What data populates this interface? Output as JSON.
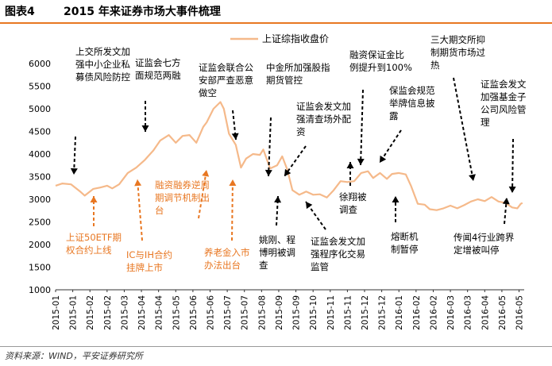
{
  "header": {
    "figure_label": "图表4",
    "title": "2015 年来证券市场大事件梳理"
  },
  "footer": {
    "source": "资料来源：WIND，平安证券研究所"
  },
  "chart_data": {
    "type": "line",
    "title": "2015 年来证券市场大事件梳理",
    "legend": {
      "label": "上证综指收盘价",
      "position": "top"
    },
    "colors": {
      "line": "#f5b98a",
      "black_annotation": "#000000",
      "orange_annotation": "#e87722"
    },
    "ylim": [
      1000,
      6000
    ],
    "yticks": [
      1000,
      1500,
      2000,
      2500,
      3000,
      3500,
      4000,
      4500,
      5000,
      5500,
      6000
    ],
    "xticks": [
      "2015-01",
      "2015-01",
      "2015-02",
      "2015-02",
      "2015-03",
      "2015-04",
      "2015-04",
      "2015-05",
      "2015-06",
      "2015-06",
      "2015-07",
      "2015-07",
      "2015-08",
      "2015-09",
      "2015-09",
      "2015-10",
      "2015-11",
      "2015-11",
      "2015-12",
      "2015-12",
      "2016-01",
      "2016-02",
      "2016-02",
      "2016-03",
      "2016-03",
      "2016-04",
      "2016-05",
      "2016-05"
    ],
    "x_index_range": [
      0,
      27.2
    ],
    "series": [
      {
        "name": "上证综指收盘价",
        "points": [
          [
            0.0,
            3300
          ],
          [
            0.4,
            3350
          ],
          [
            0.9,
            3330
          ],
          [
            1.4,
            3180
          ],
          [
            1.7,
            3080
          ],
          [
            2.2,
            3230
          ],
          [
            2.6,
            3260
          ],
          [
            3.0,
            3300
          ],
          [
            3.3,
            3240
          ],
          [
            3.7,
            3330
          ],
          [
            4.2,
            3580
          ],
          [
            4.7,
            3700
          ],
          [
            5.2,
            3870
          ],
          [
            5.7,
            4080
          ],
          [
            6.1,
            4300
          ],
          [
            6.6,
            4420
          ],
          [
            7.0,
            4250
          ],
          [
            7.4,
            4400
          ],
          [
            7.8,
            4420
          ],
          [
            8.2,
            4250
          ],
          [
            8.6,
            4600
          ],
          [
            8.8,
            4700
          ],
          [
            9.2,
            5000
          ],
          [
            9.6,
            5150
          ],
          [
            9.8,
            5000
          ],
          [
            10.1,
            4450
          ],
          [
            10.5,
            4200
          ],
          [
            10.8,
            3700
          ],
          [
            11.1,
            3900
          ],
          [
            11.5,
            4000
          ],
          [
            11.9,
            3980
          ],
          [
            12.1,
            4100
          ],
          [
            12.5,
            3680
          ],
          [
            12.9,
            3750
          ],
          [
            13.2,
            3950
          ],
          [
            13.5,
            3650
          ],
          [
            13.8,
            3200
          ],
          [
            14.2,
            3100
          ],
          [
            14.6,
            3170
          ],
          [
            15.0,
            3100
          ],
          [
            15.4,
            3110
          ],
          [
            15.8,
            3040
          ],
          [
            16.2,
            3200
          ],
          [
            16.6,
            3400
          ],
          [
            17.0,
            3380
          ],
          [
            17.4,
            3400
          ],
          [
            17.8,
            3580
          ],
          [
            18.2,
            3620
          ],
          [
            18.5,
            3470
          ],
          [
            18.9,
            3580
          ],
          [
            19.3,
            3450
          ],
          [
            19.6,
            3560
          ],
          [
            20.0,
            3580
          ],
          [
            20.4,
            3550
          ],
          [
            20.7,
            3300
          ],
          [
            21.1,
            2900
          ],
          [
            21.5,
            2880
          ],
          [
            21.8,
            2780
          ],
          [
            22.2,
            2760
          ],
          [
            22.6,
            2800
          ],
          [
            23.0,
            2860
          ],
          [
            23.4,
            2800
          ],
          [
            23.8,
            2870
          ],
          [
            24.2,
            2950
          ],
          [
            24.6,
            3000
          ],
          [
            25.0,
            2960
          ],
          [
            25.4,
            3050
          ],
          [
            25.8,
            2950
          ],
          [
            26.2,
            2920
          ],
          [
            26.6,
            2820
          ],
          [
            26.9,
            2800
          ],
          [
            27.1,
            2900
          ],
          [
            27.2,
            2920
          ]
        ]
      }
    ],
    "annotations": [
      {
        "lines": [
          "上交所发文加",
          "强中小企业私",
          "募债风险防控"
        ],
        "color": "black",
        "arrow": "down"
      },
      {
        "lines": [
          "证监会七方",
          "面规范两融"
        ],
        "color": "black",
        "arrow": "down"
      },
      {
        "lines": [
          "证监会联合公",
          "安部严查恶意",
          "做空"
        ],
        "color": "black",
        "arrow": "down"
      },
      {
        "lines": [
          "中金所加强股指",
          "期货管控"
        ],
        "color": "black",
        "arrow": "down"
      },
      {
        "lines": [
          "证监会发文加",
          "强清查场外配",
          "资"
        ],
        "color": "black",
        "arrow": "down-left"
      },
      {
        "lines": [
          "融资保证金比",
          "例提升到100%"
        ],
        "color": "black",
        "arrow": "down"
      },
      {
        "lines": [
          "保监会规范",
          "举牌信息披",
          "露"
        ],
        "color": "black",
        "arrow": "down-left"
      },
      {
        "lines": [
          "三大期交所抑",
          "制期货市场过",
          "热"
        ],
        "color": "black",
        "arrow": "down"
      },
      {
        "lines": [
          "证监会发文",
          "加强基金子",
          "公司风险管",
          "理"
        ],
        "color": "black",
        "arrow": "down"
      },
      {
        "lines": [
          "上证50ETF期",
          "权合约上线"
        ],
        "color": "orange",
        "arrow": "up"
      },
      {
        "lines": [
          "IC与IH合约",
          "挂牌上市"
        ],
        "color": "orange",
        "arrow": "up"
      },
      {
        "lines": [
          "融资融券逆周",
          "期调节机制出",
          "台"
        ],
        "color": "orange",
        "arrow": "up"
      },
      {
        "lines": [
          "养老金入市",
          "办法出台"
        ],
        "color": "orange",
        "arrow": "up"
      },
      {
        "lines": [
          "姚刚、程",
          "博明被调",
          "查"
        ],
        "color": "black",
        "arrow": "up"
      },
      {
        "lines": [
          "证监会发文加",
          "强程序化交易",
          "监管"
        ],
        "color": "black",
        "arrow": "up-left"
      },
      {
        "lines": [
          "徐翔被",
          "调查"
        ],
        "color": "black",
        "arrow": "up"
      },
      {
        "lines": [
          "熔断机",
          "制暂停"
        ],
        "color": "black",
        "arrow": "up"
      },
      {
        "lines": [
          "传闻4行业跨界",
          "定增被叫停"
        ],
        "color": "black",
        "arrow": "up"
      }
    ]
  }
}
